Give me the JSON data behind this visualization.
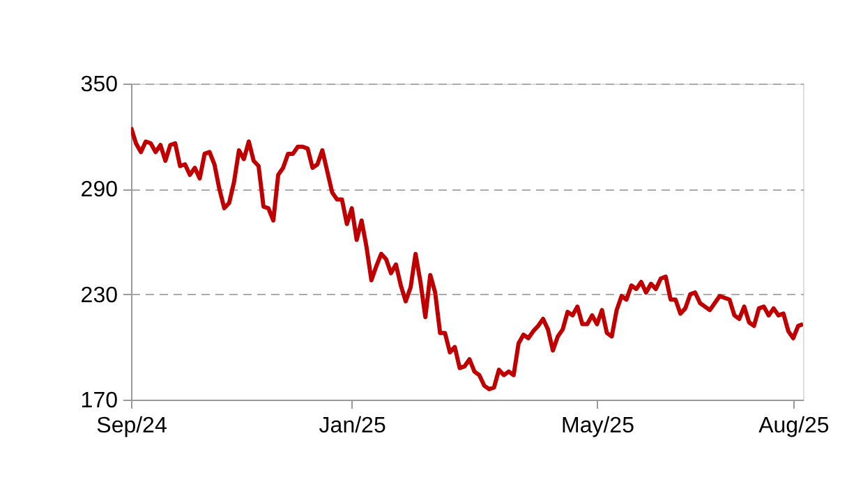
{
  "chart_data": {
    "type": "line",
    "categories": [
      "Sep/24",
      null,
      null,
      null,
      null,
      null,
      null,
      null,
      null,
      null,
      null,
      null,
      null,
      null,
      null,
      null,
      null,
      null,
      null,
      null,
      null,
      null,
      null,
      null,
      null,
      null,
      null,
      null,
      null,
      null,
      null,
      null,
      null,
      null,
      null,
      null,
      null,
      null,
      null,
      null,
      null,
      null,
      null,
      null,
      null,
      "Jan/25",
      null,
      null,
      null,
      null,
      null,
      null,
      null,
      null,
      null,
      null,
      null,
      null,
      null,
      null,
      null,
      null,
      null,
      null,
      null,
      null,
      null,
      null,
      null,
      null,
      null,
      null,
      null,
      null,
      null,
      null,
      null,
      null,
      null,
      null,
      null,
      null,
      null,
      null,
      null,
      null,
      null,
      null,
      null,
      null,
      null,
      null,
      null,
      null,
      null,
      "May/25",
      null,
      null,
      null,
      null,
      null,
      null,
      null,
      null,
      null,
      null,
      null,
      null,
      null,
      null,
      null,
      null,
      null,
      null,
      null,
      null,
      null,
      null,
      null,
      null,
      null,
      null,
      null,
      null,
      null,
      null,
      null,
      null,
      null,
      null,
      null,
      null,
      null,
      null,
      null,
      "Aug/25",
      null,
      null
    ],
    "series": [
      {
        "color": "#c00000",
        "values": [
          325,
          316,
          311,
          317,
          316,
          311,
          315,
          306,
          315,
          316,
          303,
          304,
          298,
          302,
          296,
          310,
          311,
          304,
          290,
          279,
          282,
          294,
          312,
          307,
          317,
          306,
          303,
          280,
          279,
          272,
          298,
          302,
          310,
          310,
          314,
          314,
          313,
          302,
          304,
          312,
          300,
          288,
          284,
          284,
          270,
          279,
          261,
          272,
          257,
          238,
          246,
          253,
          250,
          242,
          247,
          235,
          226,
          234,
          253,
          237,
          217,
          241,
          231,
          208,
          208,
          197,
          200,
          188,
          189,
          193,
          186,
          184,
          178,
          176,
          177,
          187,
          184,
          186,
          184,
          202,
          207,
          205,
          209,
          212,
          216,
          210,
          198,
          206,
          210,
          220,
          218,
          223,
          213,
          213,
          218,
          213,
          221,
          208,
          206,
          221,
          229,
          227,
          235,
          233,
          237,
          231,
          236,
          233,
          239,
          240,
          227,
          227,
          219,
          222,
          230,
          231,
          225,
          223,
          221,
          225,
          229,
          228,
          227,
          218,
          216,
          223,
          214,
          212,
          222,
          223,
          218,
          222,
          218,
          219,
          209,
          205,
          212,
          213
        ]
      }
    ],
    "ylim": [
      170,
      350
    ],
    "yticks": [
      170,
      230,
      290,
      350
    ],
    "grid": "y",
    "line_style": "solid",
    "marker": "none",
    "legend": false
  }
}
